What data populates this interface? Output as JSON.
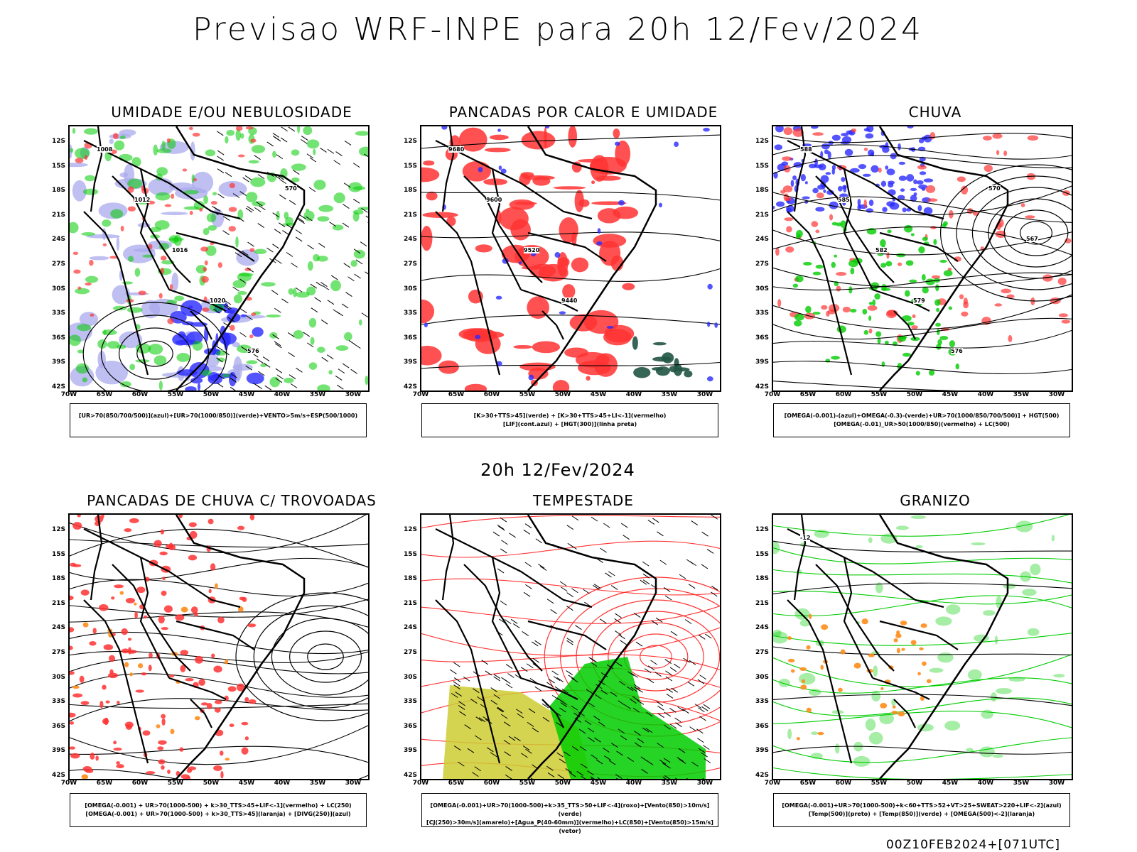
{
  "header": {
    "title": "Previsao WRF-INPE  para 20h 12/Fev/2024"
  },
  "middle_label": "20h 12/Fev/2024",
  "footer": {
    "stamp": "00Z10FEB2024+[071UTC]"
  },
  "axes": {
    "lat_ticks": [
      "12S",
      "15S",
      "18S",
      "21S",
      "24S",
      "27S",
      "30S",
      "33S",
      "36S",
      "39S",
      "42S"
    ],
    "lon_ticks": [
      "70W",
      "65W",
      "60W",
      "55W",
      "50W",
      "45W",
      "40W",
      "35W",
      "30W"
    ]
  },
  "panels": [
    {
      "id": "umidade",
      "title": "UMIDADE E/OU NEBULOSIDADE",
      "legend": [
        "[UR>70(850/700/500)](azul)+[UR>70(1000/850)](verde)+VENTO>5m/s+ESP(500/1000)"
      ],
      "contour_labels": [
        "1008",
        "1012",
        "1016",
        "1020",
        "576",
        "570"
      ]
    },
    {
      "id": "pancadas-calor",
      "title": "PANCADAS POR CALOR E UMIDADE",
      "legend": [
        "[K>30+TTS>45](verde) + [K>30+TTS>45+LI<-1](vermelho)",
        "[LIF](cont.azul) + [HGT(300)](linha preta)"
      ],
      "contour_labels": [
        "9680",
        "9600",
        "9520",
        "9440"
      ]
    },
    {
      "id": "chuva",
      "title": "CHUVA",
      "legend": [
        "[OMEGA(-0.001)-(azul)+OMEGA(-0.3)-(verde)+UR>70(1000/850/700/500)] + HGT(500)",
        "[OMEGA(-0.01)_UR>50(1000/850)(vermelho) + LC(500)"
      ],
      "contour_labels": [
        "588",
        "585",
        "582",
        "579",
        "576",
        "570",
        "567"
      ]
    },
    {
      "id": "trovoadas",
      "title": "PANCADAS DE CHUVA C/ TROVOADAS",
      "legend": [
        "[OMEGA(-0.001) + UR>70(1000-500) + k>30_TTS>45+LIF<-1](vermelho) + LC(250)",
        "[OMEGA(-0.001) + UR>70(1000-500) + k>30_TTS>45](laranja) + [DIVG(250)](azul)"
      ],
      "contour_labels": []
    },
    {
      "id": "tempestade",
      "title": "TEMPESTADE",
      "legend": [
        "[OMEGA(-0.001)+UR>70(1000-500)+k>35_TTS>50+LIF<-4](roxo)+[Vento(850)>10m/s](verde)",
        "[CJ(250)>30m/s](amarelo)+[Agua_P(40-60mm)](vermelho)+LC(850)+[Vento(850)>15m/s](vetor)"
      ],
      "contour_labels": []
    },
    {
      "id": "granizo",
      "title": "GRANIZO",
      "legend": [
        "[OMEGA(-0.001)+UR>70(1000-500)+k<60+TTS>52+VT>25+SWEAT>220+LIF<-2](azul)",
        "[Temp(500)](preto) + [Temp(850)](verde) + [OMEGA(500)<-2](laranja)"
      ],
      "contour_labels": [
        "-12"
      ]
    }
  ],
  "colors": {
    "blue": "#2b2bff",
    "green": "#00cc00",
    "red": "#ff3333",
    "purple_fill": "#aaaaee",
    "orange": "#ff8c1a",
    "yellow": "#cccc33",
    "darkgreen": "#225544"
  }
}
